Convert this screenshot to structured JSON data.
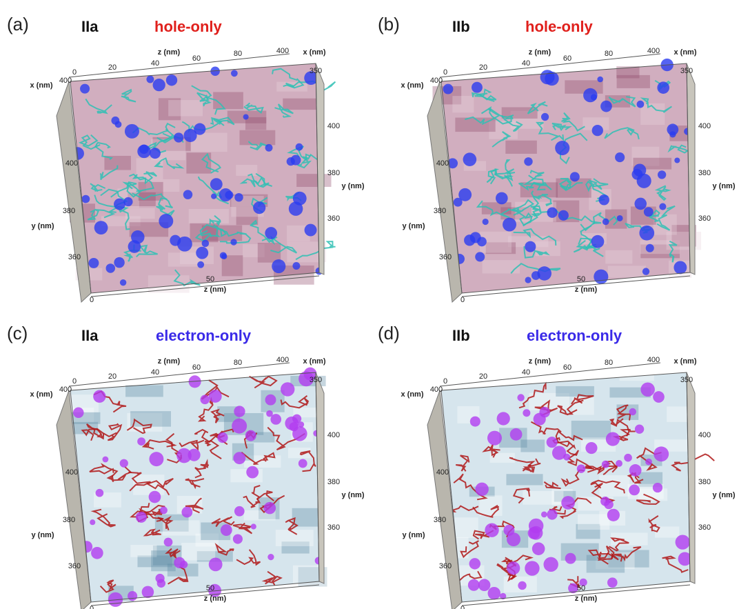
{
  "panels": [
    {
      "label": "(a)",
      "sample": "IIa",
      "mode": "hole-only",
      "axis_labels": {
        "top_z": "z (nm)",
        "left_x": "x (nm)",
        "right_x": "x (nm)",
        "left_y": "y (nm)",
        "right_y": "y (nm)",
        "bottom_z": "z (nm)"
      },
      "ticks": {
        "top_z": [
          0,
          20,
          40,
          60,
          80
        ],
        "left_x": [
          400
        ],
        "right_x": [
          400,
          350
        ],
        "left_y": [
          400,
          380,
          360
        ],
        "right_y": [
          400,
          380,
          360
        ],
        "bottom_z": [
          0,
          50
        ]
      }
    },
    {
      "label": "(b)",
      "sample": "IIb",
      "mode": "hole-only",
      "axis_labels": {
        "top_z": "z (nm)",
        "left_x": "x (nm)",
        "right_x": "x (nm)",
        "left_y": "y (nm)",
        "right_y": "y (nm)",
        "bottom_z": "z (nm)"
      },
      "ticks": {
        "top_z": [
          0,
          20,
          40,
          60,
          80
        ],
        "left_x": [
          400
        ],
        "right_x": [
          400,
          350
        ],
        "left_y": [
          400,
          380,
          360
        ],
        "right_y": [
          400,
          380,
          360
        ],
        "bottom_z": [
          0,
          50
        ]
      }
    },
    {
      "label": "(c)",
      "sample": "IIa",
      "mode": "electron-only",
      "axis_labels": {
        "top_z": "z (nm)",
        "left_x": "x (nm)",
        "right_x": "x (nm)",
        "left_y": "y (nm)",
        "right_y": "y (nm)",
        "bottom_z": "z (nm)"
      },
      "ticks": {
        "top_z": [
          0,
          20,
          40,
          60,
          80
        ],
        "left_x": [
          400
        ],
        "right_x": [
          400,
          350
        ],
        "left_y": [
          400,
          380,
          360
        ],
        "right_y": [
          400,
          380,
          360
        ],
        "bottom_z": [
          0,
          50
        ]
      }
    },
    {
      "label": "(d)",
      "sample": "IIb",
      "mode": "electron-only",
      "axis_labels": {
        "top_z": "z (nm)",
        "left_x": "x (nm)",
        "right_x": "x (nm)",
        "left_y": "y (nm)",
        "right_y": "y (nm)",
        "bottom_z": "z (nm)"
      },
      "ticks": {
        "top_z": [
          0,
          20,
          40,
          60,
          80
        ],
        "left_x": [
          400
        ],
        "right_x": [
          400,
          350
        ],
        "left_y": [
          400,
          380,
          360
        ],
        "right_y": [
          400,
          380,
          360
        ],
        "bottom_z": [
          0,
          50
        ]
      }
    }
  ]
}
